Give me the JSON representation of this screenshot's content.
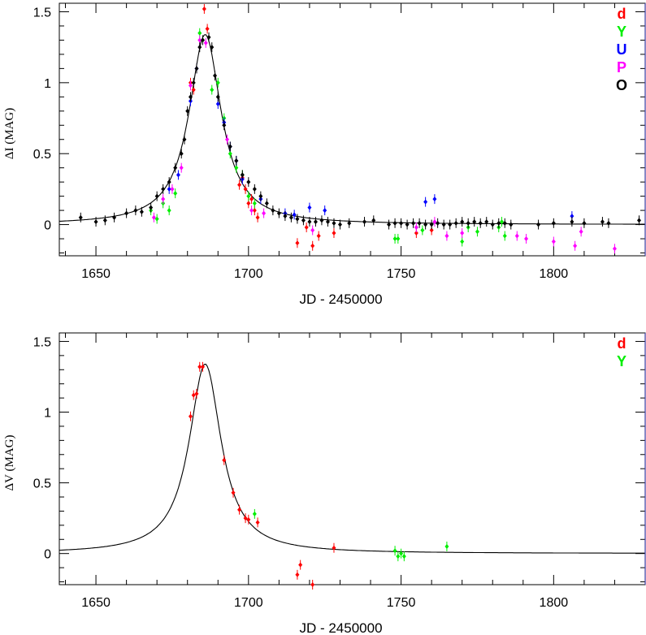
{
  "chart_data": [
    {
      "type": "scatter",
      "title": "",
      "xlabel": "JD - 2450000",
      "ylabel": "ΔI (MAG)",
      "xlim": [
        1638,
        1830
      ],
      "ylim": [
        -0.22,
        1.56
      ],
      "xticks": [
        1650,
        1700,
        1750,
        1800
      ],
      "yticks": [
        0,
        0.5,
        1,
        1.5
      ],
      "xtick_labels": [
        "1650",
        "1700",
        "1750",
        "1800"
      ],
      "ytick_labels": [
        "0",
        "0.5",
        "1",
        "1.5"
      ],
      "vline_x": 1830,
      "vline_color": "#3a3aa0",
      "legend_position": "top-right",
      "model": {
        "name": "",
        "peak_x": 1685.8,
        "peak_y": 1.34,
        "halfwidth": 6.4,
        "color": "#000000"
      },
      "series": [
        {
          "name": "d",
          "color": "#ff0000",
          "points": [
            [
              1685.5,
              1.52
            ],
            [
              1686.5,
              1.38
            ],
            [
              1681,
              1.0
            ],
            [
              1682,
              0.95
            ],
            [
              1697,
              0.28
            ],
            [
              1698,
              0.33
            ],
            [
              1699,
              0.25
            ],
            [
              1700,
              0.15
            ],
            [
              1701,
              0.18
            ],
            [
              1702,
              0.1
            ],
            [
              1703,
              0.05
            ],
            [
              1716,
              -0.13
            ],
            [
              1719,
              -0.02
            ],
            [
              1721,
              -0.15
            ],
            [
              1723,
              -0.08
            ],
            [
              1728,
              -0.06
            ],
            [
              1755,
              -0.06
            ],
            [
              1760,
              -0.04
            ]
          ]
        },
        {
          "name": "Y",
          "color": "#00ee00",
          "points": [
            [
              1668,
              0.1
            ],
            [
              1670,
              0.04
            ],
            [
              1672,
              0.15
            ],
            [
              1674,
              0.1
            ],
            [
              1676,
              0.22
            ],
            [
              1684,
              1.35
            ],
            [
              1685,
              1.3
            ],
            [
              1688,
              0.95
            ],
            [
              1690,
              1.0
            ],
            [
              1692,
              0.75
            ],
            [
              1694,
              0.5
            ],
            [
              1696,
              0.4
            ],
            [
              1698,
              0.35
            ],
            [
              1700,
              0.2
            ],
            [
              1702,
              0.15
            ],
            [
              1748,
              -0.1
            ],
            [
              1749,
              -0.1
            ],
            [
              1757,
              -0.04
            ],
            [
              1770,
              -0.12
            ],
            [
              1772,
              -0.02
            ],
            [
              1775,
              -0.05
            ],
            [
              1782,
              -0.02
            ],
            [
              1783,
              0.02
            ],
            [
              1784,
              -0.08
            ]
          ]
        },
        {
          "name": "U",
          "color": "#0000ff",
          "points": [
            [
              1674,
              0.25
            ],
            [
              1677,
              0.35
            ],
            [
              1681,
              0.87
            ],
            [
              1683,
              1.1
            ],
            [
              1690,
              0.85
            ],
            [
              1692,
              0.72
            ],
            [
              1694,
              0.55
            ],
            [
              1696,
              0.45
            ],
            [
              1698,
              0.32
            ],
            [
              1704,
              0.18
            ],
            [
              1712,
              0.08
            ],
            [
              1715,
              0.07
            ],
            [
              1720,
              0.12
            ],
            [
              1725,
              0.1
            ],
            [
              1758,
              0.16
            ],
            [
              1761,
              0.18
            ],
            [
              1806,
              0.06
            ]
          ]
        },
        {
          "name": "P",
          "color": "#ff00ff",
          "points": [
            [
              1669,
              0.05
            ],
            [
              1672,
              0.18
            ],
            [
              1675,
              0.25
            ],
            [
              1678,
              0.4
            ],
            [
              1681,
              0.98
            ],
            [
              1684,
              1.3
            ],
            [
              1686,
              1.28
            ],
            [
              1693,
              0.6
            ],
            [
              1701,
              0.1
            ],
            [
              1705,
              0.08
            ],
            [
              1721,
              -0.04
            ],
            [
              1755,
              -0.02
            ],
            [
              1761,
              0.02
            ],
            [
              1765,
              -0.08
            ],
            [
              1770,
              -0.06
            ],
            [
              1788,
              -0.08
            ],
            [
              1791,
              -0.1
            ],
            [
              1800,
              -0.12
            ],
            [
              1807,
              -0.15
            ],
            [
              1809,
              -0.05
            ],
            [
              1820,
              -0.17
            ]
          ]
        },
        {
          "name": "O",
          "color": "#000000",
          "points": [
            [
              1645,
              0.05
            ],
            [
              1650,
              0.02
            ],
            [
              1653,
              0.03
            ],
            [
              1656,
              0.05
            ],
            [
              1660,
              0.08
            ],
            [
              1663,
              0.1
            ],
            [
              1665,
              0.09
            ],
            [
              1668,
              0.12
            ],
            [
              1670,
              0.2
            ],
            [
              1672,
              0.25
            ],
            [
              1674,
              0.3
            ],
            [
              1676,
              0.4
            ],
            [
              1678,
              0.5
            ],
            [
              1679,
              0.6
            ],
            [
              1680,
              0.8
            ],
            [
              1681,
              0.9
            ],
            [
              1682,
              1.0
            ],
            [
              1683,
              1.1
            ],
            [
              1684,
              1.25
            ],
            [
              1685,
              1.3
            ],
            [
              1687,
              1.32
            ],
            [
              1688,
              1.25
            ],
            [
              1689,
              1.05
            ],
            [
              1690,
              0.9
            ],
            [
              1692,
              0.7
            ],
            [
              1694,
              0.55
            ],
            [
              1696,
              0.45
            ],
            [
              1698,
              0.35
            ],
            [
              1700,
              0.3
            ],
            [
              1702,
              0.25
            ],
            [
              1704,
              0.2
            ],
            [
              1706,
              0.15
            ],
            [
              1708,
              0.1
            ],
            [
              1710,
              0.08
            ],
            [
              1712,
              0.06
            ],
            [
              1714,
              0.05
            ],
            [
              1716,
              0.04
            ],
            [
              1718,
              0.03
            ],
            [
              1720,
              0.02
            ],
            [
              1722,
              0.02
            ],
            [
              1724,
              0.03
            ],
            [
              1726,
              0.02
            ],
            [
              1728,
              0.01
            ],
            [
              1730,
              0.0
            ],
            [
              1733,
              0.01
            ],
            [
              1738,
              0.02
            ],
            [
              1741,
              0.03
            ],
            [
              1746,
              0.0
            ],
            [
              1748,
              0.01
            ],
            [
              1750,
              0.01
            ],
            [
              1752,
              0.0
            ],
            [
              1754,
              0.01
            ],
            [
              1756,
              0.01
            ],
            [
              1758,
              0.0
            ],
            [
              1760,
              0.0
            ],
            [
              1762,
              0.01
            ],
            [
              1764,
              0.0
            ],
            [
              1766,
              0.0
            ],
            [
              1768,
              0.01
            ],
            [
              1770,
              0.02
            ],
            [
              1772,
              0.01
            ],
            [
              1774,
              0.02
            ],
            [
              1776,
              0.01
            ],
            [
              1778,
              0.02
            ],
            [
              1780,
              0.0
            ],
            [
              1782,
              0.01
            ],
            [
              1784,
              0.01
            ],
            [
              1786,
              0.0
            ],
            [
              1795,
              0.0
            ],
            [
              1800,
              0.01
            ],
            [
              1806,
              0.02
            ],
            [
              1810,
              0.01
            ],
            [
              1816,
              0.02
            ],
            [
              1818,
              0.01
            ],
            [
              1828,
              0.03
            ]
          ]
        }
      ]
    },
    {
      "type": "scatter",
      "title": "",
      "xlabel": "JD - 2450000",
      "ylabel": "ΔV (MAG)",
      "xlim": [
        1638,
        1830
      ],
      "ylim": [
        -0.22,
        1.56
      ],
      "xticks": [
        1650,
        1700,
        1750,
        1800
      ],
      "yticks": [
        0,
        0.5,
        1,
        1.5
      ],
      "xtick_labels": [
        "1650",
        "1700",
        "1750",
        "1800"
      ],
      "ytick_labels": [
        "0",
        "0.5",
        "1",
        "1.5"
      ],
      "vline_x": 1830,
      "vline_color": "#3a3aa0",
      "legend_position": "top-right",
      "model": {
        "name": "",
        "peak_x": 1685.8,
        "peak_y": 1.34,
        "halfwidth": 6.4,
        "color": "#000000"
      },
      "series": [
        {
          "name": "d",
          "color": "#ff0000",
          "points": [
            [
              1681,
              0.97
            ],
            [
              1682,
              1.12
            ],
            [
              1683,
              1.13
            ],
            [
              1684,
              1.32
            ],
            [
              1685,
              1.32
            ],
            [
              1692,
              0.66
            ],
            [
              1695,
              0.43
            ],
            [
              1697,
              0.31
            ],
            [
              1699,
              0.25
            ],
            [
              1700,
              0.24
            ],
            [
              1703,
              0.22
            ],
            [
              1716,
              -0.15
            ],
            [
              1717,
              -0.08
            ],
            [
              1721,
              -0.22
            ],
            [
              1728,
              0.04
            ]
          ]
        },
        {
          "name": "Y",
          "color": "#00ee00",
          "points": [
            [
              1702,
              0.28
            ],
            [
              1748,
              0.02
            ],
            [
              1749,
              -0.02
            ],
            [
              1750,
              0.0
            ],
            [
              1751,
              -0.02
            ],
            [
              1765,
              0.05
            ]
          ]
        }
      ]
    }
  ]
}
